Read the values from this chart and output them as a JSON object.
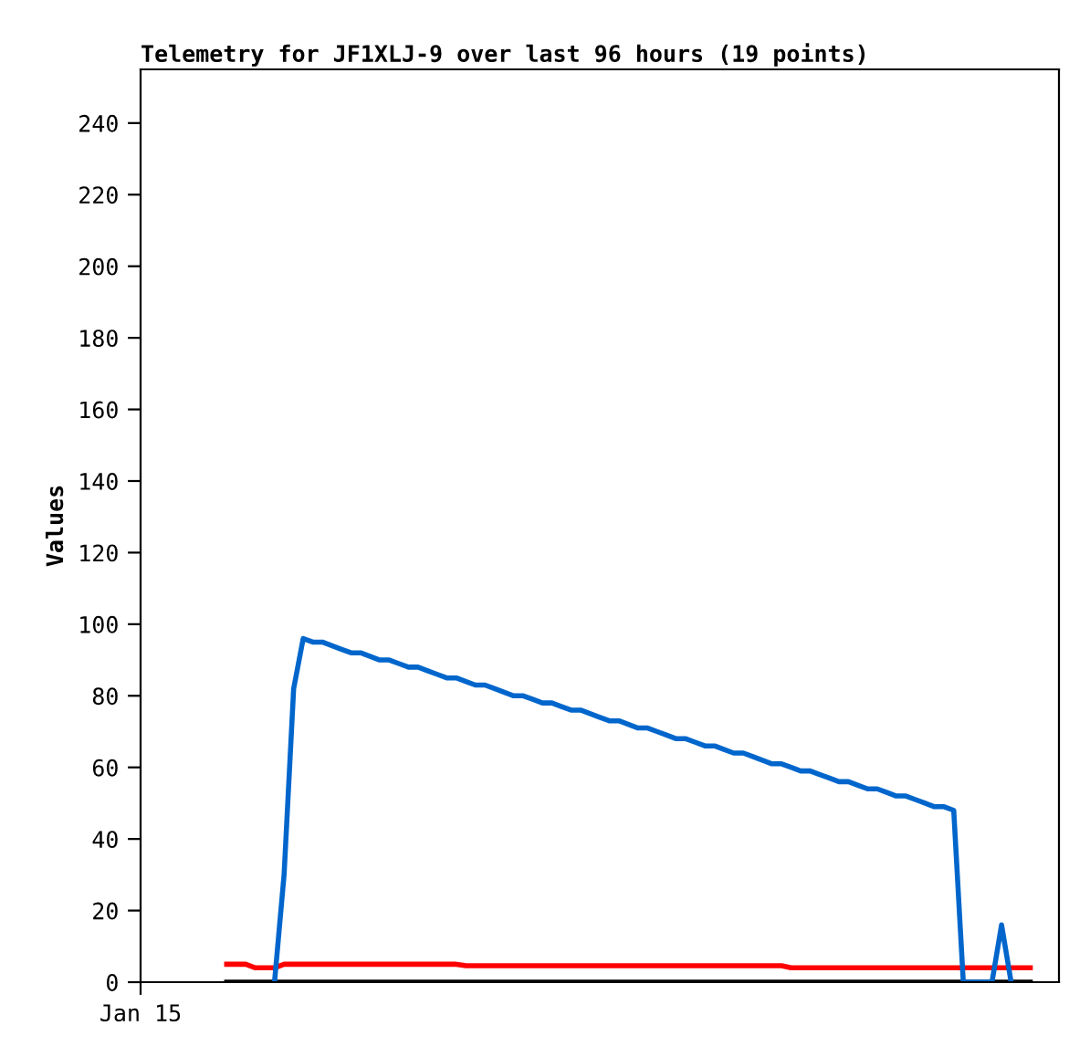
{
  "chart_data": {
    "type": "line",
    "title": "Telemetry for JF1XLJ-9 over last 96 hours (19 points)",
    "ylabel": "Values",
    "categories": [
      "Jan 15",
      null,
      null,
      null,
      null,
      null,
      null,
      null,
      null,
      null,
      null,
      null,
      null,
      null,
      null,
      null,
      null,
      null,
      null,
      null,
      null,
      null,
      null,
      null,
      null,
      null,
      null,
      null,
      null,
      null,
      null,
      null,
      null,
      null,
      null,
      null,
      null,
      null,
      null,
      null,
      null,
      null,
      null,
      null,
      null,
      null,
      null,
      null,
      null,
      null,
      null,
      null,
      null,
      null,
      null,
      null,
      null,
      null,
      null,
      null,
      null,
      null,
      null,
      null,
      null,
      null,
      null,
      null,
      null,
      null,
      null,
      null,
      null,
      null,
      null,
      null,
      null,
      null,
      null,
      null,
      null,
      null,
      null,
      null,
      null,
      null,
      null,
      null,
      null,
      null,
      null,
      null,
      null,
      null,
      null,
      null,
      null
    ],
    "ylim": [
      0,
      255
    ],
    "yticks": [
      0,
      20,
      40,
      60,
      80,
      100,
      120,
      140,
      160,
      180,
      200,
      220,
      240
    ],
    "series": [
      {
        "color": "#000000",
        "values": [
          null,
          null,
          null,
          null,
          null,
          null,
          null,
          null,
          null,
          0,
          0,
          0,
          0,
          0,
          0,
          0,
          0,
          0,
          0,
          0,
          0,
          0,
          0,
          0,
          0,
          0,
          0,
          0,
          0,
          0,
          0,
          0,
          0,
          0,
          0,
          0,
          0,
          0,
          0,
          0,
          0,
          0,
          0,
          0,
          0,
          0,
          0,
          0,
          0,
          0,
          0,
          0,
          0,
          0,
          0,
          0,
          0,
          0,
          0,
          0,
          0,
          0,
          0,
          0,
          0,
          0,
          0,
          0,
          0,
          0,
          0,
          0,
          0,
          0,
          0,
          0,
          0,
          0,
          0,
          0,
          0,
          0,
          0,
          0,
          0,
          0,
          0,
          0,
          0,
          0,
          0,
          0,
          0,
          0,
          null,
          null,
          null
        ]
      },
      {
        "color": "#ff0000",
        "values": [
          null,
          null,
          null,
          null,
          null,
          null,
          null,
          null,
          null,
          5,
          5,
          5,
          4,
          4,
          4,
          5,
          5,
          5,
          5,
          5,
          5,
          5,
          5,
          5,
          5,
          5,
          5,
          5,
          5,
          5,
          5,
          5,
          5,
          5,
          4.6,
          4.6,
          4.6,
          4.6,
          4.6,
          4.6,
          4.6,
          4.6,
          4.6,
          4.6,
          4.6,
          4.6,
          4.6,
          4.6,
          4.6,
          4.6,
          4.6,
          4.6,
          4.6,
          4.6,
          4.6,
          4.6,
          4.6,
          4.6,
          4.6,
          4.6,
          4.6,
          4.6,
          4.6,
          4.6,
          4.6,
          4.6,
          4.6,
          4.6,
          4,
          4,
          4,
          4,
          4,
          4,
          4,
          4,
          4,
          4,
          4,
          4,
          4,
          4,
          4,
          4,
          4,
          4,
          4,
          4,
          4,
          4,
          4,
          4,
          4,
          4,
          null,
          null,
          null
        ]
      },
      {
        "color": "#0066cc",
        "values": [
          null,
          null,
          null,
          null,
          null,
          null,
          null,
          null,
          null,
          null,
          null,
          null,
          null,
          null,
          0,
          30,
          82,
          96,
          95,
          95,
          94,
          93,
          92,
          92,
          91,
          90,
          90,
          89,
          88,
          88,
          87,
          86,
          85,
          85,
          84,
          83,
          83,
          82,
          81,
          80,
          80,
          79,
          78,
          78,
          77,
          76,
          76,
          75,
          74,
          73,
          73,
          72,
          71,
          71,
          70,
          69,
          68,
          68,
          67,
          66,
          66,
          65,
          64,
          64,
          63,
          62,
          61,
          61,
          60,
          59,
          59,
          58,
          57,
          56,
          56,
          55,
          54,
          54,
          53,
          52,
          52,
          51,
          50,
          49,
          49,
          48,
          0,
          0,
          0,
          0,
          16,
          0,
          null,
          null,
          null,
          null,
          null
        ]
      }
    ]
  }
}
